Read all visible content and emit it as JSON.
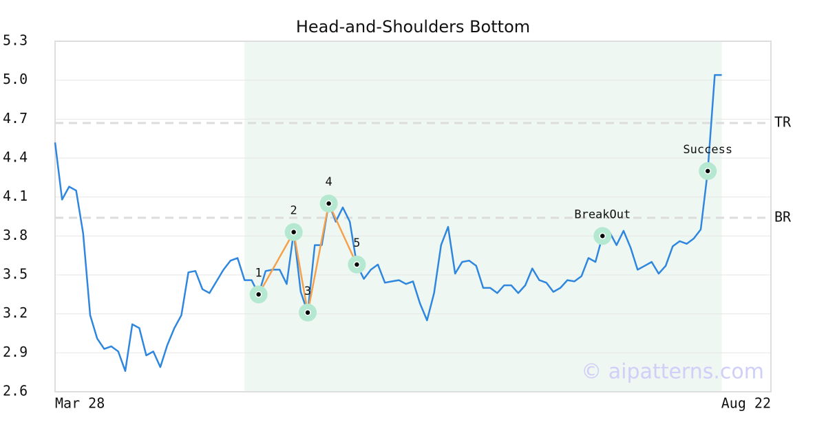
{
  "chart_data": {
    "type": "line",
    "title": "Head-and-Shoulders Bottom",
    "categories": [
      "Mar 28",
      null,
      null,
      null,
      null,
      null,
      null,
      null,
      null,
      null,
      null,
      null,
      null,
      null,
      null,
      null,
      null,
      null,
      null,
      null,
      null,
      null,
      null,
      null,
      null,
      null,
      null,
      null,
      null,
      null,
      null,
      null,
      null,
      null,
      null,
      null,
      null,
      null,
      null,
      null,
      null,
      null,
      null,
      null,
      null,
      null,
      null,
      null,
      null,
      null,
      null,
      null,
      null,
      null,
      null,
      null,
      null,
      null,
      null,
      null,
      null,
      null,
      null,
      null,
      null,
      null,
      null,
      null,
      null,
      null,
      null,
      null,
      null,
      null,
      null,
      null,
      null,
      null,
      null,
      null,
      null,
      null,
      null,
      null,
      null,
      null,
      null,
      null,
      null,
      null,
      null,
      null,
      null,
      null,
      null,
      null,
      null,
      null,
      null,
      null,
      null,
      null,
      "Aug 22"
    ],
    "values": [
      4.52,
      4.08,
      4.18,
      4.15,
      3.82,
      3.19,
      3.01,
      2.93,
      2.95,
      2.91,
      2.76,
      3.12,
      3.09,
      2.88,
      2.91,
      2.79,
      2.96,
      3.09,
      3.19,
      3.52,
      3.53,
      3.39,
      3.36,
      3.45,
      3.54,
      3.61,
      3.63,
      3.46,
      3.46,
      3.35,
      3.53,
      3.54,
      3.54,
      3.43,
      3.83,
      3.37,
      3.21,
      3.73,
      3.73,
      4.05,
      3.91,
      4.02,
      3.91,
      3.58,
      3.47,
      3.54,
      3.58,
      3.44,
      3.45,
      3.46,
      3.43,
      3.45,
      3.28,
      3.15,
      3.36,
      3.73,
      3.87,
      3.51,
      3.6,
      3.61,
      3.57,
      3.4,
      3.4,
      3.36,
      3.42,
      3.42,
      3.36,
      3.42,
      3.55,
      3.46,
      3.44,
      3.37,
      3.4,
      3.46,
      3.45,
      3.49,
      3.63,
      3.6,
      3.8,
      3.83,
      3.73,
      3.84,
      3.71,
      3.54,
      3.57,
      3.6,
      3.51,
      3.57,
      3.72,
      3.76,
      3.74,
      3.78,
      3.85,
      4.3,
      5.04,
      5.04,
      null,
      null,
      null,
      null,
      null,
      null,
      null
    ],
    "color": "#2e86de",
    "ylim": [
      2.6,
      5.3
    ],
    "yticks": [
      2.6,
      2.9,
      3.2,
      3.5,
      3.8,
      4.1,
      4.4,
      4.7,
      {
        "value": 5.0,
        "label": "5.0"
      },
      5.3
    ],
    "grid": true,
    "highlight_range": [
      27,
      95
    ],
    "highlight_color": "#eef7f2",
    "levels": [
      {
        "label": "TR",
        "value": 4.67
      },
      {
        "label": "BR",
        "value": 3.94
      }
    ],
    "pattern": {
      "color": "#f5a04a",
      "indices": [
        29,
        34,
        36,
        39,
        43
      ]
    },
    "annotations": [
      {
        "text": "1",
        "index": 29
      },
      {
        "text": "2",
        "index": 34
      },
      {
        "text": "3",
        "index": 36
      },
      {
        "text": "4",
        "index": 39
      },
      {
        "text": "5",
        "index": 43
      },
      {
        "text": "BreakOut",
        "index": 78
      },
      {
        "text": "Success",
        "index": 93
      }
    ],
    "marker_color": "#b5e8d0",
    "watermark": "© aipatterns.com"
  }
}
